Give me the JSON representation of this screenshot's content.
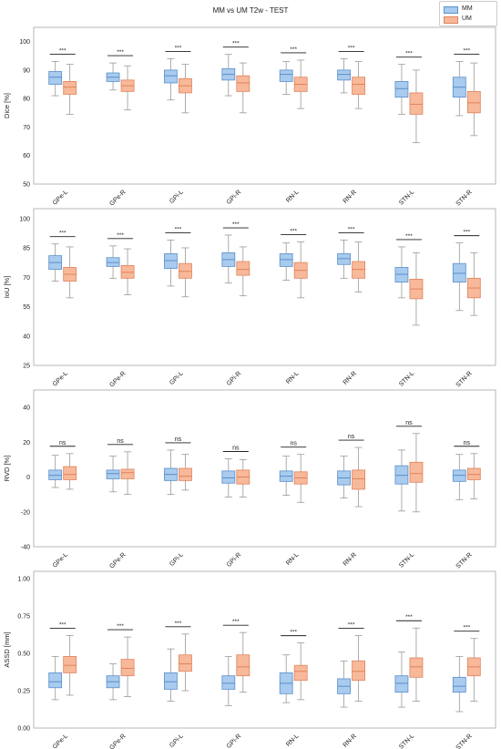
{
  "figure_title": "MM vs UM T2w - TEST",
  "legend": {
    "placement": "top-right",
    "items": [
      {
        "name": "MM",
        "color": "#a8cbee",
        "edge": "#5b8fcb"
      },
      {
        "name": "UM",
        "color": "#f8b99a",
        "edge": "#e0825a"
      }
    ]
  },
  "chart_data": [
    {
      "type": "box",
      "ylabel": "Dice [%]",
      "ylim": [
        50,
        105
      ],
      "yticks": [
        50,
        60,
        70,
        80,
        90,
        100
      ],
      "grid": false,
      "categories": [
        "GPe-L",
        "GPe-R",
        "GPi-L",
        "GPi-R",
        "RN-L",
        "RN-R",
        "STN-L",
        "STN-R"
      ],
      "significance": [
        "***",
        "***",
        "***",
        "***",
        "***",
        "***",
        "***",
        "***"
      ],
      "series": [
        {
          "name": "MM",
          "boxes": [
            {
              "whislo": 81,
              "q1": 85,
              "med": 87.5,
              "q3": 89.5,
              "whishi": 93
            },
            {
              "whislo": 83,
              "q1": 86,
              "med": 87.5,
              "q3": 89,
              "whishi": 92.5
            },
            {
              "whislo": 79.5,
              "q1": 85.5,
              "med": 88,
              "q3": 90,
              "whishi": 94
            },
            {
              "whislo": 81,
              "q1": 86.5,
              "med": 88.5,
              "q3": 90.5,
              "whishi": 95.5
            },
            {
              "whislo": 81.5,
              "q1": 86,
              "med": 88.5,
              "q3": 90,
              "whishi": 93
            },
            {
              "whislo": 82,
              "q1": 86.5,
              "med": 88.5,
              "q3": 90,
              "whishi": 94
            },
            {
              "whislo": 74.5,
              "q1": 80.5,
              "med": 83.5,
              "q3": 86,
              "whishi": 92
            },
            {
              "whislo": 74,
              "q1": 80.5,
              "med": 84,
              "q3": 87.5,
              "whishi": 93
            }
          ]
        },
        {
          "name": "UM",
          "boxes": [
            {
              "whislo": 74.5,
              "q1": 81.5,
              "med": 84,
              "q3": 86,
              "whishi": 92
            },
            {
              "whislo": 76,
              "q1": 82.5,
              "med": 84.5,
              "q3": 86.5,
              "whishi": 91.5
            },
            {
              "whislo": 75,
              "q1": 82,
              "med": 84.5,
              "q3": 87,
              "whishi": 92
            },
            {
              "whislo": 75,
              "q1": 82.5,
              "med": 85.5,
              "q3": 88,
              "whishi": 92.5
            },
            {
              "whislo": 76.5,
              "q1": 82.5,
              "med": 85,
              "q3": 87.5,
              "whishi": 93.5
            },
            {
              "whislo": 76.5,
              "q1": 81.5,
              "med": 85,
              "q3": 87.5,
              "whishi": 93
            },
            {
              "whislo": 64.5,
              "q1": 74.5,
              "med": 78,
              "q3": 82,
              "whishi": 90
            },
            {
              "whislo": 67,
              "q1": 75,
              "med": 78.5,
              "q3": 82.5,
              "whishi": 92.5
            }
          ]
        }
      ]
    },
    {
      "type": "box",
      "ylabel": "IoU [%]",
      "ylim": [
        25,
        105
      ],
      "yticks": [
        25,
        40,
        55,
        70,
        85,
        100
      ],
      "grid": false,
      "categories": [
        "GPe-L",
        "GPe-R",
        "GPi-L",
        "GPi-R",
        "RN-L",
        "RN-R",
        "STN-L",
        "STN-R"
      ],
      "significance": [
        "***",
        "***",
        "***",
        "***",
        "***",
        "***",
        "***",
        "***"
      ],
      "series": [
        {
          "name": "MM",
          "boxes": [
            {
              "whislo": 68,
              "q1": 74,
              "med": 77.5,
              "q3": 81,
              "whishi": 87
            },
            {
              "whislo": 69.5,
              "q1": 75.5,
              "med": 77.5,
              "q3": 80,
              "whishi": 86
            },
            {
              "whislo": 65.5,
              "q1": 74.5,
              "med": 78.5,
              "q3": 82,
              "whishi": 89
            },
            {
              "whislo": 67,
              "q1": 75.5,
              "med": 79,
              "q3": 82.5,
              "whishi": 91.5
            },
            {
              "whislo": 68.5,
              "q1": 75.5,
              "med": 79,
              "q3": 82,
              "whishi": 87.5
            },
            {
              "whislo": 69.5,
              "q1": 76.5,
              "med": 79.5,
              "q3": 82,
              "whishi": 89
            },
            {
              "whislo": 59.5,
              "q1": 67.5,
              "med": 71.5,
              "q3": 75,
              "whishi": 85.5
            },
            {
              "whislo": 53,
              "q1": 67.5,
              "med": 72,
              "q3": 77,
              "whishi": 87.5
            }
          ]
        },
        {
          "name": "UM",
          "boxes": [
            {
              "whislo": 59.5,
              "q1": 68,
              "med": 71.5,
              "q3": 75,
              "whishi": 85.5
            },
            {
              "whislo": 61,
              "q1": 69.5,
              "med": 72.5,
              "q3": 76,
              "whishi": 84.5
            },
            {
              "whislo": 60,
              "q1": 69.5,
              "med": 73,
              "q3": 77,
              "whishi": 85
            },
            {
              "whislo": 60.5,
              "q1": 71,
              "med": 74,
              "q3": 78,
              "whishi": 85.5
            },
            {
              "whislo": 59.5,
              "q1": 69.5,
              "med": 73.5,
              "q3": 77.5,
              "whishi": 88
            },
            {
              "whislo": 62.5,
              "q1": 69.5,
              "med": 74,
              "q3": 78,
              "whishi": 88
            },
            {
              "whislo": 45.5,
              "q1": 59,
              "med": 64,
              "q3": 69,
              "whishi": 82.5
            },
            {
              "whislo": 50.5,
              "q1": 59.5,
              "med": 64.5,
              "q3": 69.5,
              "whishi": 82.5
            }
          ]
        }
      ]
    },
    {
      "type": "box",
      "ylabel": "RVD [%]",
      "ylim": [
        -40,
        50
      ],
      "yticks": [
        -40,
        -20,
        0,
        20,
        40
      ],
      "grid": false,
      "categories": [
        "GPe-L",
        "GPe-R",
        "GPi-L",
        "GPi-R",
        "RN-L",
        "RN-R",
        "STN-L",
        "STN-R"
      ],
      "significance": [
        "ns",
        "ns",
        "ns",
        "ns",
        "ns",
        "ns",
        "ns",
        "ns"
      ],
      "series": [
        {
          "name": "MM",
          "boxes": [
            {
              "whislo": -6,
              "q1": -1.5,
              "med": 1,
              "q3": 4,
              "whishi": 12.5
            },
            {
              "whislo": -8.5,
              "q1": -1,
              "med": 2,
              "q3": 4,
              "whishi": 12
            },
            {
              "whislo": -10,
              "q1": -2,
              "med": 1.5,
              "q3": 5,
              "whishi": 15.5
            },
            {
              "whislo": -11.5,
              "q1": -3.5,
              "med": -0.5,
              "q3": 3.5,
              "whishi": 10.5
            },
            {
              "whislo": -10.5,
              "q1": -2.5,
              "med": 0.5,
              "q3": 3.5,
              "whishi": 12
            },
            {
              "whislo": -12,
              "q1": -4.5,
              "med": -0.5,
              "q3": 3.5,
              "whishi": 12
            },
            {
              "whislo": -19.5,
              "q1": -4,
              "med": 1,
              "q3": 6.5,
              "whishi": 15.5
            },
            {
              "whislo": -13,
              "q1": -2.5,
              "med": 1,
              "q3": 4,
              "whishi": 13
            }
          ]
        },
        {
          "name": "UM",
          "boxes": [
            {
              "whislo": -7,
              "q1": -1.5,
              "med": 1.5,
              "q3": 6,
              "whishi": 13.5
            },
            {
              "whislo": -10,
              "q1": -1,
              "med": 2.5,
              "q3": 4.5,
              "whishi": 14.5
            },
            {
              "whislo": -7.5,
              "q1": -2,
              "med": 0.5,
              "q3": 5,
              "whishi": 13
            },
            {
              "whislo": -11.5,
              "q1": -4,
              "med": 0,
              "q3": 4,
              "whishi": 10
            },
            {
              "whislo": -14.5,
              "q1": -4,
              "med": -0.5,
              "q3": 3,
              "whishi": 13
            },
            {
              "whislo": -17,
              "q1": -7,
              "med": -1,
              "q3": 4,
              "whishi": 17
            },
            {
              "whislo": -20,
              "q1": -3,
              "med": 2,
              "q3": 8.5,
              "whishi": 25
            },
            {
              "whislo": -12.5,
              "q1": -1.5,
              "med": 1.5,
              "q3": 5,
              "whishi": 13.5
            }
          ]
        }
      ]
    },
    {
      "type": "box",
      "ylabel": "ASSD [mm]",
      "ylim": [
        0,
        1.05
      ],
      "yticks": [
        0.0,
        0.25,
        0.5,
        0.75,
        1.0
      ],
      "ytick_labels": [
        "0.00",
        "0.25",
        "0.50",
        "0.75",
        "1.00"
      ],
      "grid": false,
      "categories": [
        "GPe-L",
        "GPe-R",
        "GPi-L",
        "GPi-R",
        "RN-L",
        "RN-R",
        "STN-L",
        "STN-R"
      ],
      "significance": [
        "***",
        "***",
        "***",
        "***",
        "***",
        "***",
        "***",
        "***"
      ],
      "series": [
        {
          "name": "MM",
          "boxes": [
            {
              "whislo": 0.19,
              "q1": 0.27,
              "med": 0.31,
              "q3": 0.37,
              "whishi": 0.48
            },
            {
              "whislo": 0.19,
              "q1": 0.27,
              "med": 0.31,
              "q3": 0.35,
              "whishi": 0.43
            },
            {
              "whislo": 0.18,
              "q1": 0.26,
              "med": 0.31,
              "q3": 0.37,
              "whishi": 0.53
            },
            {
              "whislo": 0.15,
              "q1": 0.26,
              "med": 0.3,
              "q3": 0.35,
              "whishi": 0.48
            },
            {
              "whislo": 0.17,
              "q1": 0.23,
              "med": 0.3,
              "q3": 0.37,
              "whishi": 0.49
            },
            {
              "whislo": 0.14,
              "q1": 0.23,
              "med": 0.28,
              "q3": 0.33,
              "whishi": 0.45
            },
            {
              "whislo": 0.14,
              "q1": 0.24,
              "med": 0.3,
              "q3": 0.35,
              "whishi": 0.51
            },
            {
              "whislo": 0.11,
              "q1": 0.24,
              "med": 0.28,
              "q3": 0.34,
              "whishi": 0.48
            }
          ]
        },
        {
          "name": "UM",
          "boxes": [
            {
              "whislo": 0.22,
              "q1": 0.37,
              "med": 0.42,
              "q3": 0.48,
              "whishi": 0.62
            },
            {
              "whislo": 0.21,
              "q1": 0.35,
              "med": 0.4,
              "q3": 0.46,
              "whishi": 0.61
            },
            {
              "whislo": 0.25,
              "q1": 0.38,
              "med": 0.43,
              "q3": 0.49,
              "whishi": 0.63
            },
            {
              "whislo": 0.24,
              "q1": 0.35,
              "med": 0.41,
              "q3": 0.49,
              "whishi": 0.64
            },
            {
              "whislo": 0.19,
              "q1": 0.32,
              "med": 0.38,
              "q3": 0.42,
              "whishi": 0.57
            },
            {
              "whislo": 0.18,
              "q1": 0.32,
              "med": 0.38,
              "q3": 0.45,
              "whishi": 0.62
            },
            {
              "whislo": 0.18,
              "q1": 0.34,
              "med": 0.41,
              "q3": 0.47,
              "whishi": 0.67
            },
            {
              "whislo": 0.18,
              "q1": 0.35,
              "med": 0.41,
              "q3": 0.47,
              "whishi": 0.6
            }
          ]
        }
      ]
    }
  ]
}
